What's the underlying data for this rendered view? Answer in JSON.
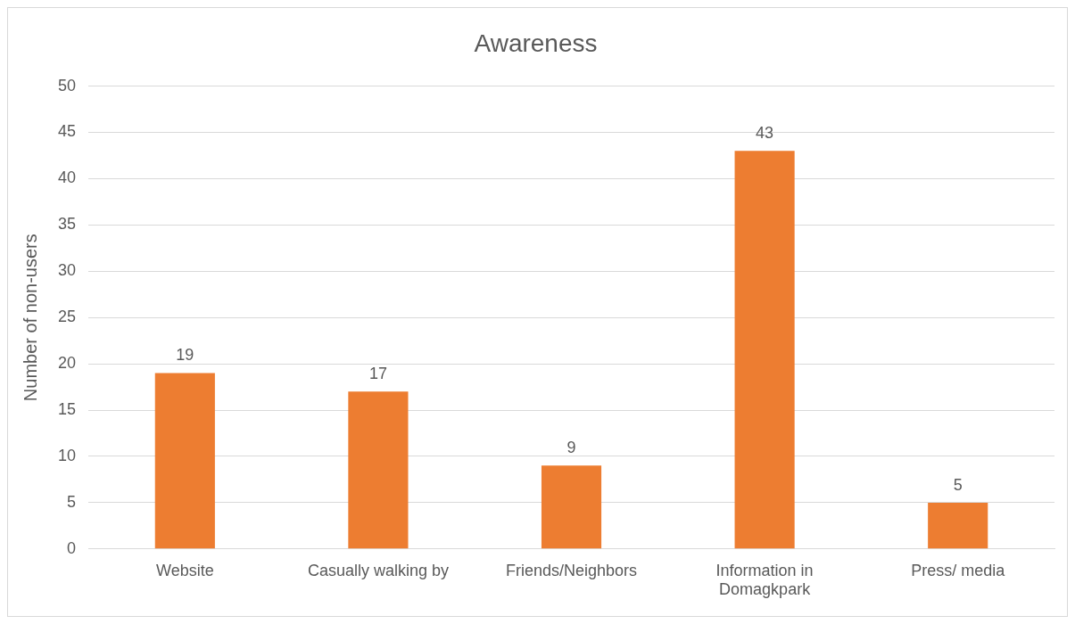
{
  "chart_data": {
    "type": "bar",
    "title": "Awareness",
    "ylabel": "Number of non-users",
    "categories": [
      "Website",
      "Casually walking by",
      "Friends/Neighbors",
      "Information in Domagkpark",
      "Press/ media"
    ],
    "values": [
      19,
      17,
      9,
      43,
      5
    ],
    "color": "#ed7d31",
    "ylim": [
      0,
      50
    ],
    "yticks": [
      0,
      5,
      10,
      15,
      20,
      25,
      30,
      35,
      40,
      45,
      50
    ],
    "grid": "y",
    "data_labels": true
  }
}
